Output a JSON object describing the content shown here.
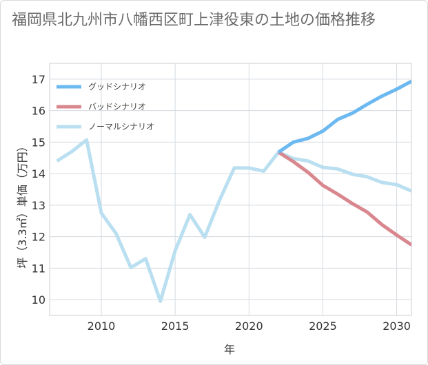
{
  "chart_data": {
    "type": "line",
    "title": "福岡県北九州市八幡西区町上津役東の土地の価格推移",
    "xlabel": "年",
    "ylabel": "坪（3.3㎡）単価（万円）",
    "xlim": [
      2006.5,
      2031
    ],
    "ylim": [
      9.5,
      17.5
    ],
    "x_ticks": [
      2010,
      2015,
      2020,
      2025,
      2030
    ],
    "y_ticks": [
      10,
      11,
      12,
      13,
      14,
      15,
      16,
      17
    ],
    "grid": true,
    "legend_position": "top-left",
    "series": [
      {
        "name": "グッドシナリオ",
        "color": "#6cb8f0",
        "x": [
          2022,
          2023,
          2024,
          2025,
          2026,
          2027,
          2028,
          2029,
          2030,
          2031
        ],
        "values": [
          14.68,
          15.0,
          15.12,
          15.35,
          15.72,
          15.92,
          16.2,
          16.46,
          16.68,
          16.93
        ]
      },
      {
        "name": "バッドシナリオ",
        "color": "#d9878e",
        "x": [
          2022,
          2023,
          2024,
          2025,
          2026,
          2027,
          2028,
          2029,
          2030,
          2031
        ],
        "values": [
          14.68,
          14.38,
          14.04,
          13.63,
          13.35,
          13.05,
          12.78,
          12.38,
          12.05,
          11.74
        ]
      },
      {
        "name": "ノーマルシナリオ",
        "color": "#b9dff0",
        "x": [
          2007,
          2008,
          2009,
          2010,
          2011,
          2012,
          2013,
          2014,
          2015,
          2016,
          2017,
          2018,
          2019,
          2020,
          2021,
          2022,
          2023,
          2024,
          2025,
          2026,
          2027,
          2028,
          2029,
          2030,
          2031
        ],
        "values": [
          14.4,
          14.7,
          15.07,
          12.75,
          12.1,
          11.02,
          11.3,
          9.95,
          11.55,
          12.7,
          11.98,
          13.15,
          14.18,
          14.18,
          14.08,
          14.68,
          14.48,
          14.4,
          14.2,
          14.15,
          13.98,
          13.9,
          13.72,
          13.65,
          13.45
        ]
      }
    ]
  }
}
